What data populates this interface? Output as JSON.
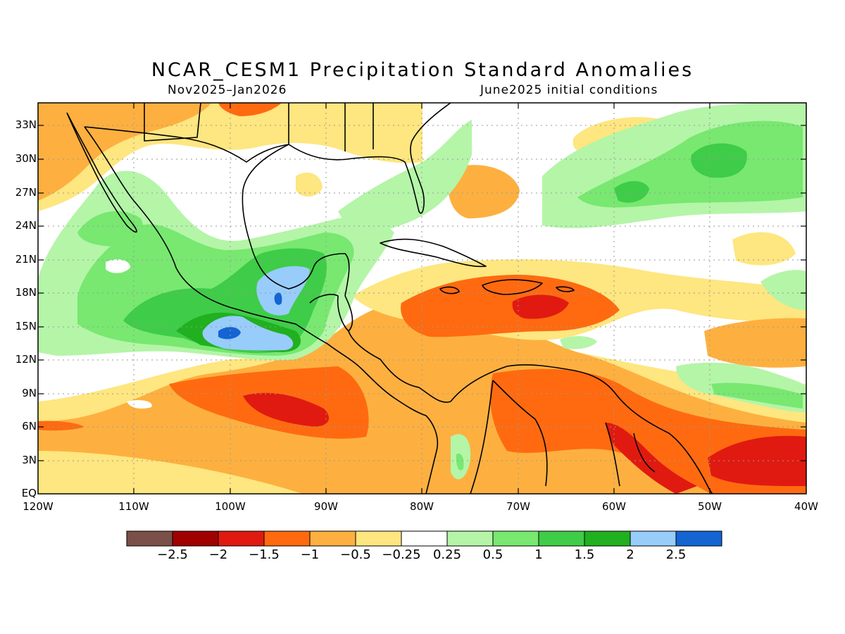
{
  "header": {
    "title": "NCAR_CESM1 Precipitation Standard Anomalies",
    "period": "Nov2025–Jan2026",
    "initial_conditions": "June2025 initial conditions"
  },
  "map": {
    "lat_labels": [
      "33N",
      "30N",
      "27N",
      "24N",
      "21N",
      "18N",
      "15N",
      "12N",
      "9N",
      "6N",
      "3N",
      "EQ"
    ],
    "lon_labels": [
      "120W",
      "110W",
      "100W",
      "90W",
      "80W",
      "70W",
      "60W",
      "50W",
      "40W"
    ],
    "region": {
      "lon_range": [
        -120,
        -40
      ],
      "lat_range": [
        0,
        35
      ]
    }
  },
  "colorbar": {
    "colors": [
      "#7a5048",
      "#a00000",
      "#e01a10",
      "#ff6a10",
      "#fdb040",
      "#fee680",
      "#ffffff",
      "#b4f5a8",
      "#78e870",
      "#3fcc48",
      "#20b020",
      "#98ccfa",
      "#1464d2"
    ],
    "labels": [
      "−2.5",
      "−2",
      "−1.5",
      "−1",
      "−0.5",
      "−0.25",
      "0.25",
      "0.5",
      "1",
      "1.5",
      "2",
      "2.5"
    ]
  }
}
